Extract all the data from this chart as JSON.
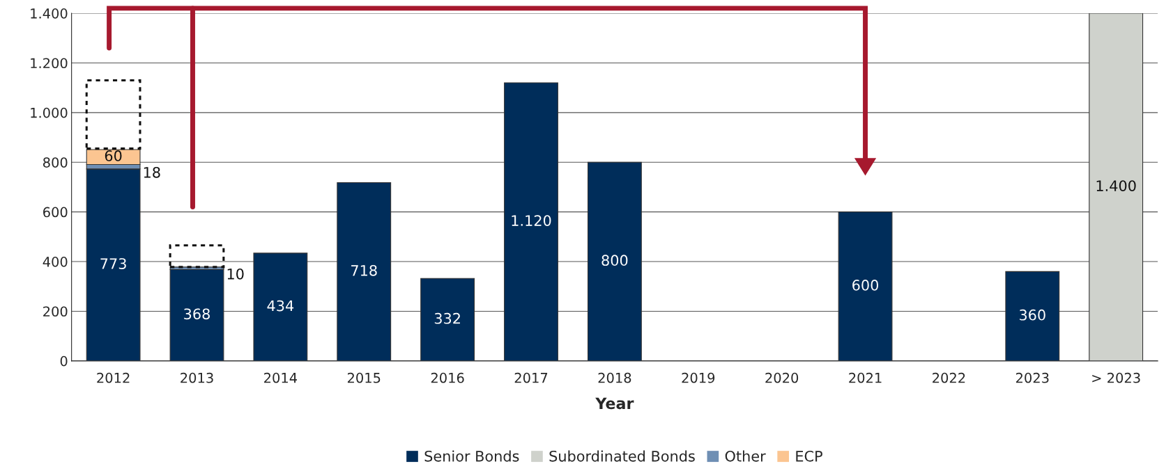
{
  "chart_data": {
    "type": "bar",
    "stacked": true,
    "xlabel": "Year",
    "categories": [
      "2012",
      "2013",
      "2014",
      "2015",
      "2016",
      "2017",
      "2018",
      "2019",
      "2020",
      "2021",
      "2022",
      "2023",
      "> 2023"
    ],
    "series": [
      {
        "name": "Senior Bonds",
        "color": "#002d5a",
        "values": [
          773,
          368,
          434,
          718,
          332,
          1120,
          800,
          null,
          null,
          600,
          null,
          360,
          null
        ],
        "value_labels": [
          "773",
          "368",
          "434",
          "718",
          "332",
          "1.120",
          "800",
          null,
          null,
          "600",
          null,
          "360",
          null
        ]
      },
      {
        "name": "Subordinated Bonds",
        "color": "#cfd2cc",
        "values": [
          null,
          null,
          null,
          null,
          null,
          null,
          null,
          null,
          null,
          null,
          null,
          null,
          1400
        ],
        "value_labels": [
          null,
          null,
          null,
          null,
          null,
          null,
          null,
          null,
          null,
          null,
          null,
          null,
          "1.400"
        ]
      },
      {
        "name": "Other",
        "color": "#6f8fb4",
        "values": [
          18,
          10,
          null,
          null,
          null,
          null,
          null,
          null,
          null,
          null,
          null,
          null,
          null
        ],
        "value_labels": [
          "18",
          "10",
          null,
          null,
          null,
          null,
          null,
          null,
          null,
          null,
          null,
          null,
          null
        ]
      },
      {
        "name": "ECP",
        "color": "#fbc591",
        "values": [
          60,
          null,
          null,
          null,
          null,
          null,
          null,
          null,
          null,
          null,
          null,
          null,
          null
        ],
        "value_labels": [
          "60",
          null,
          null,
          null,
          null,
          null,
          null,
          null,
          null,
          null,
          null,
          null,
          null
        ]
      }
    ],
    "ylim": [
      0,
      1400
    ],
    "yticks": [
      0,
      200,
      400,
      600,
      800,
      {
        "value": 1000,
        "label": "1.000"
      },
      {
        "value": 1200,
        "label": "1.200"
      },
      {
        "value": 1400,
        "label": "1.400"
      }
    ],
    "grid": "y",
    "legend": "bottom"
  }
}
